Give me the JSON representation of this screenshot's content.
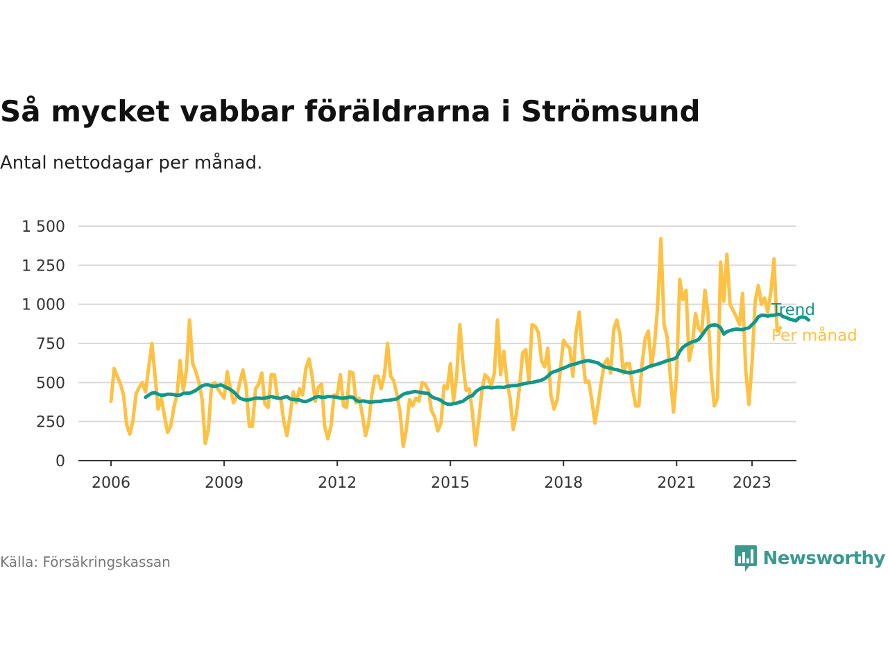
{
  "title": "Så mycket vabbar föräldrarna i Strömsund",
  "subtitle": "Antal nettodagar per månad.",
  "source": "Källa: Försäkringskassan",
  "brand": "Newsworthy",
  "colors": {
    "monthly": "#fdc144",
    "trend": "#13968a",
    "grid": "#d9d9d9",
    "axis": "#333333",
    "brand": "#3a9a8e"
  },
  "chart_data": {
    "type": "line",
    "title": "Så mycket vabbar föräldrarna i Strömsund",
    "xlabel": "",
    "ylabel": "",
    "ylim": [
      0,
      1500
    ],
    "xlim": [
      2006,
      2023.75
    ],
    "y_ticks": [
      0,
      250,
      500,
      750,
      1000,
      1250,
      1500
    ],
    "y_tick_labels": [
      "0",
      "250",
      "500",
      "750",
      "1 000",
      "1 250",
      "1 500"
    ],
    "x_ticks": [
      2006,
      2009,
      2012,
      2015,
      2018,
      2021,
      2023
    ],
    "x_tick_labels": [
      "2006",
      "2009",
      "2012",
      "2015",
      "2018",
      "2021",
      "2023"
    ],
    "grid": true,
    "legend": "inline-right",
    "series": [
      {
        "name": "Per månad",
        "start": 2006.0,
        "step_months": 1,
        "values": [
          380,
          590,
          540,
          490,
          420,
          230,
          170,
          260,
          430,
          470,
          500,
          440,
          600,
          750,
          550,
          330,
          400,
          290,
          180,
          220,
          340,
          420,
          640,
          450,
          580,
          900,
          620,
          570,
          500,
          390,
          110,
          200,
          480,
          500,
          460,
          430,
          400,
          570,
          460,
          370,
          410,
          500,
          580,
          470,
          220,
          220,
          460,
          490,
          560,
          360,
          340,
          550,
          550,
          400,
          400,
          250,
          160,
          290,
          440,
          370,
          460,
          420,
          590,
          650,
          540,
          380,
          470,
          490,
          220,
          140,
          220,
          420,
          420,
          550,
          350,
          340,
          570,
          560,
          370,
          400,
          290,
          160,
          240,
          420,
          540,
          540,
          460,
          550,
          750,
          540,
          510,
          420,
          310,
          90,
          200,
          390,
          350,
          400,
          380,
          500,
          490,
          450,
          320,
          280,
          190,
          240,
          480,
          460,
          620,
          380,
          540,
          870,
          620,
          450,
          460,
          310,
          100,
          250,
          440,
          550,
          530,
          480,
          560,
          900,
          550,
          700,
          510,
          400,
          200,
          300,
          470,
          690,
          710,
          500,
          870,
          860,
          820,
          640,
          600,
          720,
          420,
          330,
          390,
          580,
          770,
          740,
          720,
          540,
          820,
          950,
          700,
          500,
          510,
          390,
          240,
          360,
          500,
          620,
          650,
          560,
          840,
          900,
          800,
          560,
          620,
          620,
          460,
          350,
          350,
          620,
          780,
          830,
          600,
          750,
          1000,
          1420,
          870,
          790,
          540,
          310,
          550,
          1160,
          1030,
          1090,
          640,
          740,
          940,
          850,
          820,
          1090,
          940,
          560,
          350,
          400,
          1270,
          1020,
          1320,
          1000,
          960,
          920,
          870,
          1070,
          580,
          360,
          620,
          1020,
          1120,
          1000,
          1040,
          950,
          1080,
          1290,
          830,
          850
        ]
      },
      {
        "name": "Trend",
        "start": 2006.917,
        "step_months": 1,
        "values": [
          405,
          420,
          432,
          435,
          425,
          418,
          420,
          425,
          425,
          422,
          418,
          420,
          430,
          432,
          432,
          440,
          450,
          465,
          478,
          485,
          485,
          478,
          475,
          480,
          485,
          475,
          465,
          455,
          440,
          420,
          400,
          392,
          388,
          390,
          395,
          400,
          400,
          398,
          400,
          405,
          410,
          405,
          400,
          398,
          405,
          410,
          395,
          392,
          390,
          388,
          380,
          378,
          385,
          395,
          405,
          410,
          405,
          405,
          410,
          410,
          408,
          405,
          400,
          400,
          402,
          408,
          405,
          385,
          378,
          382,
          380,
          375,
          375,
          378,
          378,
          380,
          385,
          385,
          388,
          392,
          395,
          410,
          425,
          432,
          435,
          440,
          442,
          438,
          435,
          432,
          430,
          410,
          400,
          395,
          385,
          370,
          362,
          360,
          365,
          368,
          375,
          380,
          395,
          410,
          415,
          440,
          455,
          465,
          468,
          470,
          465,
          468,
          470,
          470,
          468,
          475,
          478,
          480,
          480,
          485,
          490,
          495,
          498,
          500,
          505,
          510,
          515,
          525,
          540,
          560,
          570,
          575,
          585,
          592,
          600,
          610,
          615,
          620,
          628,
          632,
          638,
          640,
          635,
          630,
          625,
          610,
          600,
          595,
          592,
          585,
          582,
          575,
          570,
          565,
          562,
          565,
          570,
          575,
          580,
          590,
          600,
          608,
          612,
          618,
          625,
          632,
          640,
          645,
          650,
          660,
          700,
          725,
          740,
          750,
          760,
          765,
          775,
          800,
          830,
          855,
          865,
          868,
          865,
          850,
          810,
          825,
          832,
          838,
          842,
          840,
          838,
          845,
          850,
          870,
          890,
          920,
          930,
          930,
          925,
          930,
          930,
          935,
          935,
          920,
          915,
          905,
          900,
          895,
          915,
          920,
          915,
          900
        ]
      }
    ]
  }
}
